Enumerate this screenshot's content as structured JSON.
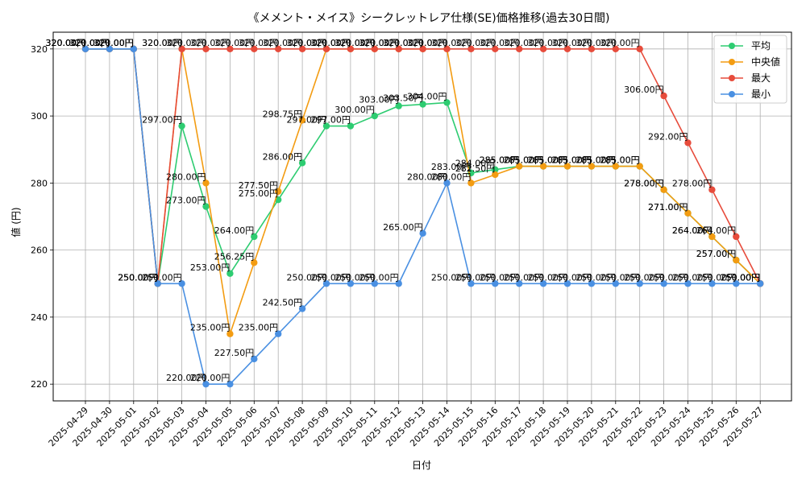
{
  "chart_data": {
    "type": "line",
    "title": "《メメント・メイス》シークレットレア仕様(SE)価格推移(過去30日間)",
    "xlabel": "日付",
    "ylabel": "値 (円)",
    "ylim": [
      215,
      325
    ],
    "yticks": [
      220,
      240,
      260,
      280,
      300,
      320
    ],
    "grid": true,
    "legend_position": "top-right",
    "value_suffix": "円",
    "categories": [
      "2025-04-29",
      "2025-04-30",
      "2025-05-01",
      "2025-05-02",
      "2025-05-03",
      "2025-05-04",
      "2025-05-05",
      "2025-05-06",
      "2025-05-07",
      "2025-05-08",
      "2025-05-09",
      "2025-05-10",
      "2025-05-11",
      "2025-05-12",
      "2025-05-13",
      "2025-05-14",
      "2025-05-15",
      "2025-05-16",
      "2025-05-17",
      "2025-05-18",
      "2025-05-19",
      "2025-05-20",
      "2025-05-21",
      "2025-05-22",
      "2025-05-23",
      "2025-05-24",
      "2025-05-25",
      "2025-05-26",
      "2025-05-27"
    ],
    "series": [
      {
        "name": "平均",
        "color": "#2ecc71",
        "values": [
          320,
          320,
          320,
          250,
          297,
          273,
          253,
          264,
          275,
          286,
          297,
          297,
          300,
          303,
          303.5,
          304,
          283,
          284,
          285,
          285,
          285,
          285,
          285,
          285,
          278,
          271,
          264,
          257,
          250
        ]
      },
      {
        "name": "中央値",
        "color": "#f39c12",
        "values": [
          320,
          320,
          320,
          250,
          320,
          280,
          235,
          256.25,
          277.5,
          298.75,
          320,
          320,
          320,
          320,
          320,
          320,
          280,
          282.5,
          285,
          285,
          285,
          285,
          285,
          285,
          278,
          271,
          264,
          257,
          250
        ]
      },
      {
        "name": "最大",
        "color": "#e74c3c",
        "values": [
          320,
          320,
          320,
          250,
          320,
          320,
          320,
          320,
          320,
          320,
          320,
          320,
          320,
          320,
          320,
          320,
          320,
          320,
          320,
          320,
          320,
          320,
          320,
          320,
          306,
          292,
          278,
          264,
          250
        ]
      },
      {
        "name": "最小",
        "color": "#4a90e2",
        "values": [
          320,
          320,
          320,
          250,
          250,
          220,
          220,
          227.5,
          235,
          242.5,
          250,
          250,
          250,
          250,
          265,
          280,
          250,
          250,
          250,
          250,
          250,
          250,
          250,
          250,
          250,
          250,
          250,
          250,
          250
        ]
      }
    ]
  }
}
